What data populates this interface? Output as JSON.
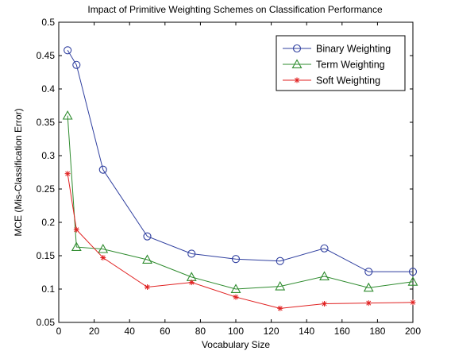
{
  "chart_data": {
    "type": "line",
    "title": "Impact of Primitive Weighting Schemes on Classification Performance",
    "xlabel": "Vocabulary Size",
    "ylabel": "MCE (Mis-Classification Error)",
    "xlim": [
      0,
      200
    ],
    "ylim": [
      0.05,
      0.5
    ],
    "xticks": [
      0,
      20,
      40,
      60,
      80,
      100,
      120,
      140,
      160,
      180,
      200
    ],
    "yticks": [
      0.05,
      0.1,
      0.15,
      0.2,
      0.25,
      0.3,
      0.35,
      0.4,
      0.45,
      0.5
    ],
    "xtick_labels": [
      "0",
      "20",
      "40",
      "60",
      "80",
      "100",
      "120",
      "140",
      "160",
      "180",
      "200"
    ],
    "ytick_labels": [
      "0.05",
      "0.1",
      "0.15",
      "0.2",
      "0.25",
      "0.3",
      "0.35",
      "0.4",
      "0.45",
      "0.5"
    ],
    "grid": false,
    "legend_position": "top-right",
    "x": [
      5,
      10,
      25,
      50,
      75,
      100,
      125,
      150,
      175,
      200
    ],
    "series": [
      {
        "name": "Binary Weighting",
        "color": "#2f3f9f",
        "marker": "circle",
        "values": [
          0.458,
          0.436,
          0.279,
          0.179,
          0.153,
          0.145,
          0.142,
          0.161,
          0.126,
          0.126
        ]
      },
      {
        "name": "Term Weighting",
        "color": "#2e8b2e",
        "marker": "triangle",
        "values": [
          0.36,
          0.163,
          0.16,
          0.144,
          0.118,
          0.1,
          0.104,
          0.119,
          0.102,
          0.111
        ]
      },
      {
        "name": "Soft Weighting",
        "color": "#e02020",
        "marker": "star",
        "values": [
          0.273,
          0.189,
          0.147,
          0.103,
          0.11,
          0.088,
          0.071,
          0.078,
          0.079,
          0.08
        ]
      }
    ]
  }
}
